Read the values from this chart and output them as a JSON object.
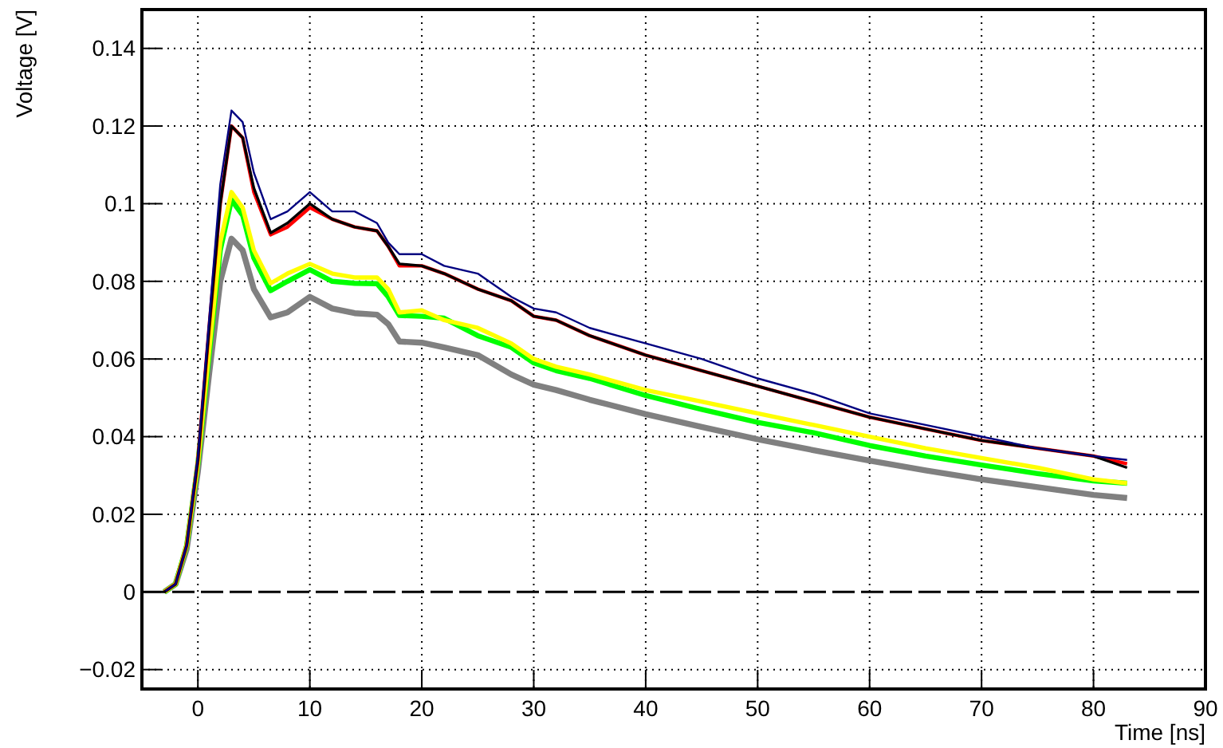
{
  "chart_data": {
    "type": "line",
    "xlabel": "Time [ns]",
    "ylabel": "Voltage [V]",
    "x": [
      -3,
      -2,
      -1,
      0,
      1,
      2,
      3,
      4,
      5,
      6.5,
      8,
      10,
      12,
      14,
      16,
      17,
      18,
      20,
      22,
      25,
      28,
      30,
      32,
      35,
      40,
      45,
      50,
      55,
      60,
      65,
      70,
      75,
      80,
      83
    ],
    "xlim": [
      -5,
      90
    ],
    "xticks": [
      0,
      10,
      20,
      30,
      40,
      50,
      60,
      70,
      80,
      90
    ],
    "ylim": [
      -0.025,
      0.15
    ],
    "yticks": [
      {
        "value": -0.02,
        "label": "−0.02"
      },
      0,
      0.02,
      0.04,
      0.06,
      0.08,
      0.1,
      0.12,
      0.14
    ],
    "grid": true,
    "marker": "none",
    "line_style": "solid",
    "ref_lines": [
      {
        "axis": "y",
        "value": 0,
        "color": "#000000",
        "line_style": "dashed"
      }
    ],
    "series": [
      {
        "color": "#808080",
        "values": [
          0,
          0.002,
          0.011,
          0.031,
          0.056,
          0.08,
          0.091,
          0.088,
          0.078,
          0.0707,
          0.072,
          0.076,
          0.073,
          0.0718,
          0.0714,
          0.069,
          0.0645,
          0.0642,
          0.063,
          0.061,
          0.056,
          0.0534,
          0.052,
          0.0495,
          0.0458,
          0.0425,
          0.0393,
          0.0365,
          0.0338,
          0.0313,
          0.029,
          0.027,
          0.025,
          0.0242
        ]
      },
      {
        "color": "#00ff00",
        "values": [
          0,
          0.002,
          0.012,
          0.033,
          0.061,
          0.088,
          0.101,
          0.097,
          0.086,
          0.0776,
          0.08,
          0.083,
          0.08,
          0.0795,
          0.0794,
          0.076,
          0.0712,
          0.071,
          0.0705,
          0.066,
          0.063,
          0.059,
          0.057,
          0.055,
          0.0506,
          0.047,
          0.0437,
          0.041,
          0.0377,
          0.035,
          0.0327,
          0.0305,
          0.0286,
          0.028
        ]
      },
      {
        "color": "#ffff00",
        "values": [
          0,
          0.002,
          0.012,
          0.033,
          0.062,
          0.09,
          0.103,
          0.099,
          0.088,
          0.0795,
          0.082,
          0.0845,
          0.082,
          0.081,
          0.081,
          0.078,
          0.072,
          0.0725,
          0.07,
          0.068,
          0.064,
          0.06,
          0.058,
          0.056,
          0.052,
          0.049,
          0.046,
          0.043,
          0.04,
          0.037,
          0.0345,
          0.032,
          0.029,
          0.028
        ]
      },
      {
        "color": "#ff0000",
        "values": [
          0,
          0.002,
          0.012,
          0.034,
          0.068,
          0.1,
          0.12,
          0.117,
          0.103,
          0.092,
          0.094,
          0.099,
          0.096,
          0.094,
          0.093,
          0.089,
          0.084,
          0.084,
          0.082,
          0.078,
          0.075,
          0.071,
          0.07,
          0.066,
          0.061,
          0.057,
          0.053,
          0.049,
          0.045,
          0.042,
          0.039,
          0.037,
          0.035,
          0.033
        ]
      },
      {
        "color": "#000000",
        "values": [
          0,
          0.002,
          0.012,
          0.034,
          0.068,
          0.1,
          0.12,
          0.117,
          0.104,
          0.0925,
          0.095,
          0.1,
          0.096,
          0.094,
          0.093,
          0.089,
          0.0845,
          0.084,
          0.082,
          0.078,
          0.075,
          0.071,
          0.07,
          0.066,
          0.061,
          0.057,
          0.053,
          0.049,
          0.045,
          0.042,
          0.039,
          0.037,
          0.035,
          0.032
        ]
      },
      {
        "color": "#000080",
        "values": [
          0,
          0.002,
          0.012,
          0.035,
          0.07,
          0.105,
          0.124,
          0.121,
          0.108,
          0.096,
          0.098,
          0.103,
          0.098,
          0.098,
          0.095,
          0.09,
          0.087,
          0.087,
          0.084,
          0.082,
          0.076,
          0.073,
          0.072,
          0.068,
          0.064,
          0.06,
          0.055,
          0.051,
          0.046,
          0.043,
          0.04,
          0.037,
          0.035,
          0.034
        ]
      }
    ]
  }
}
